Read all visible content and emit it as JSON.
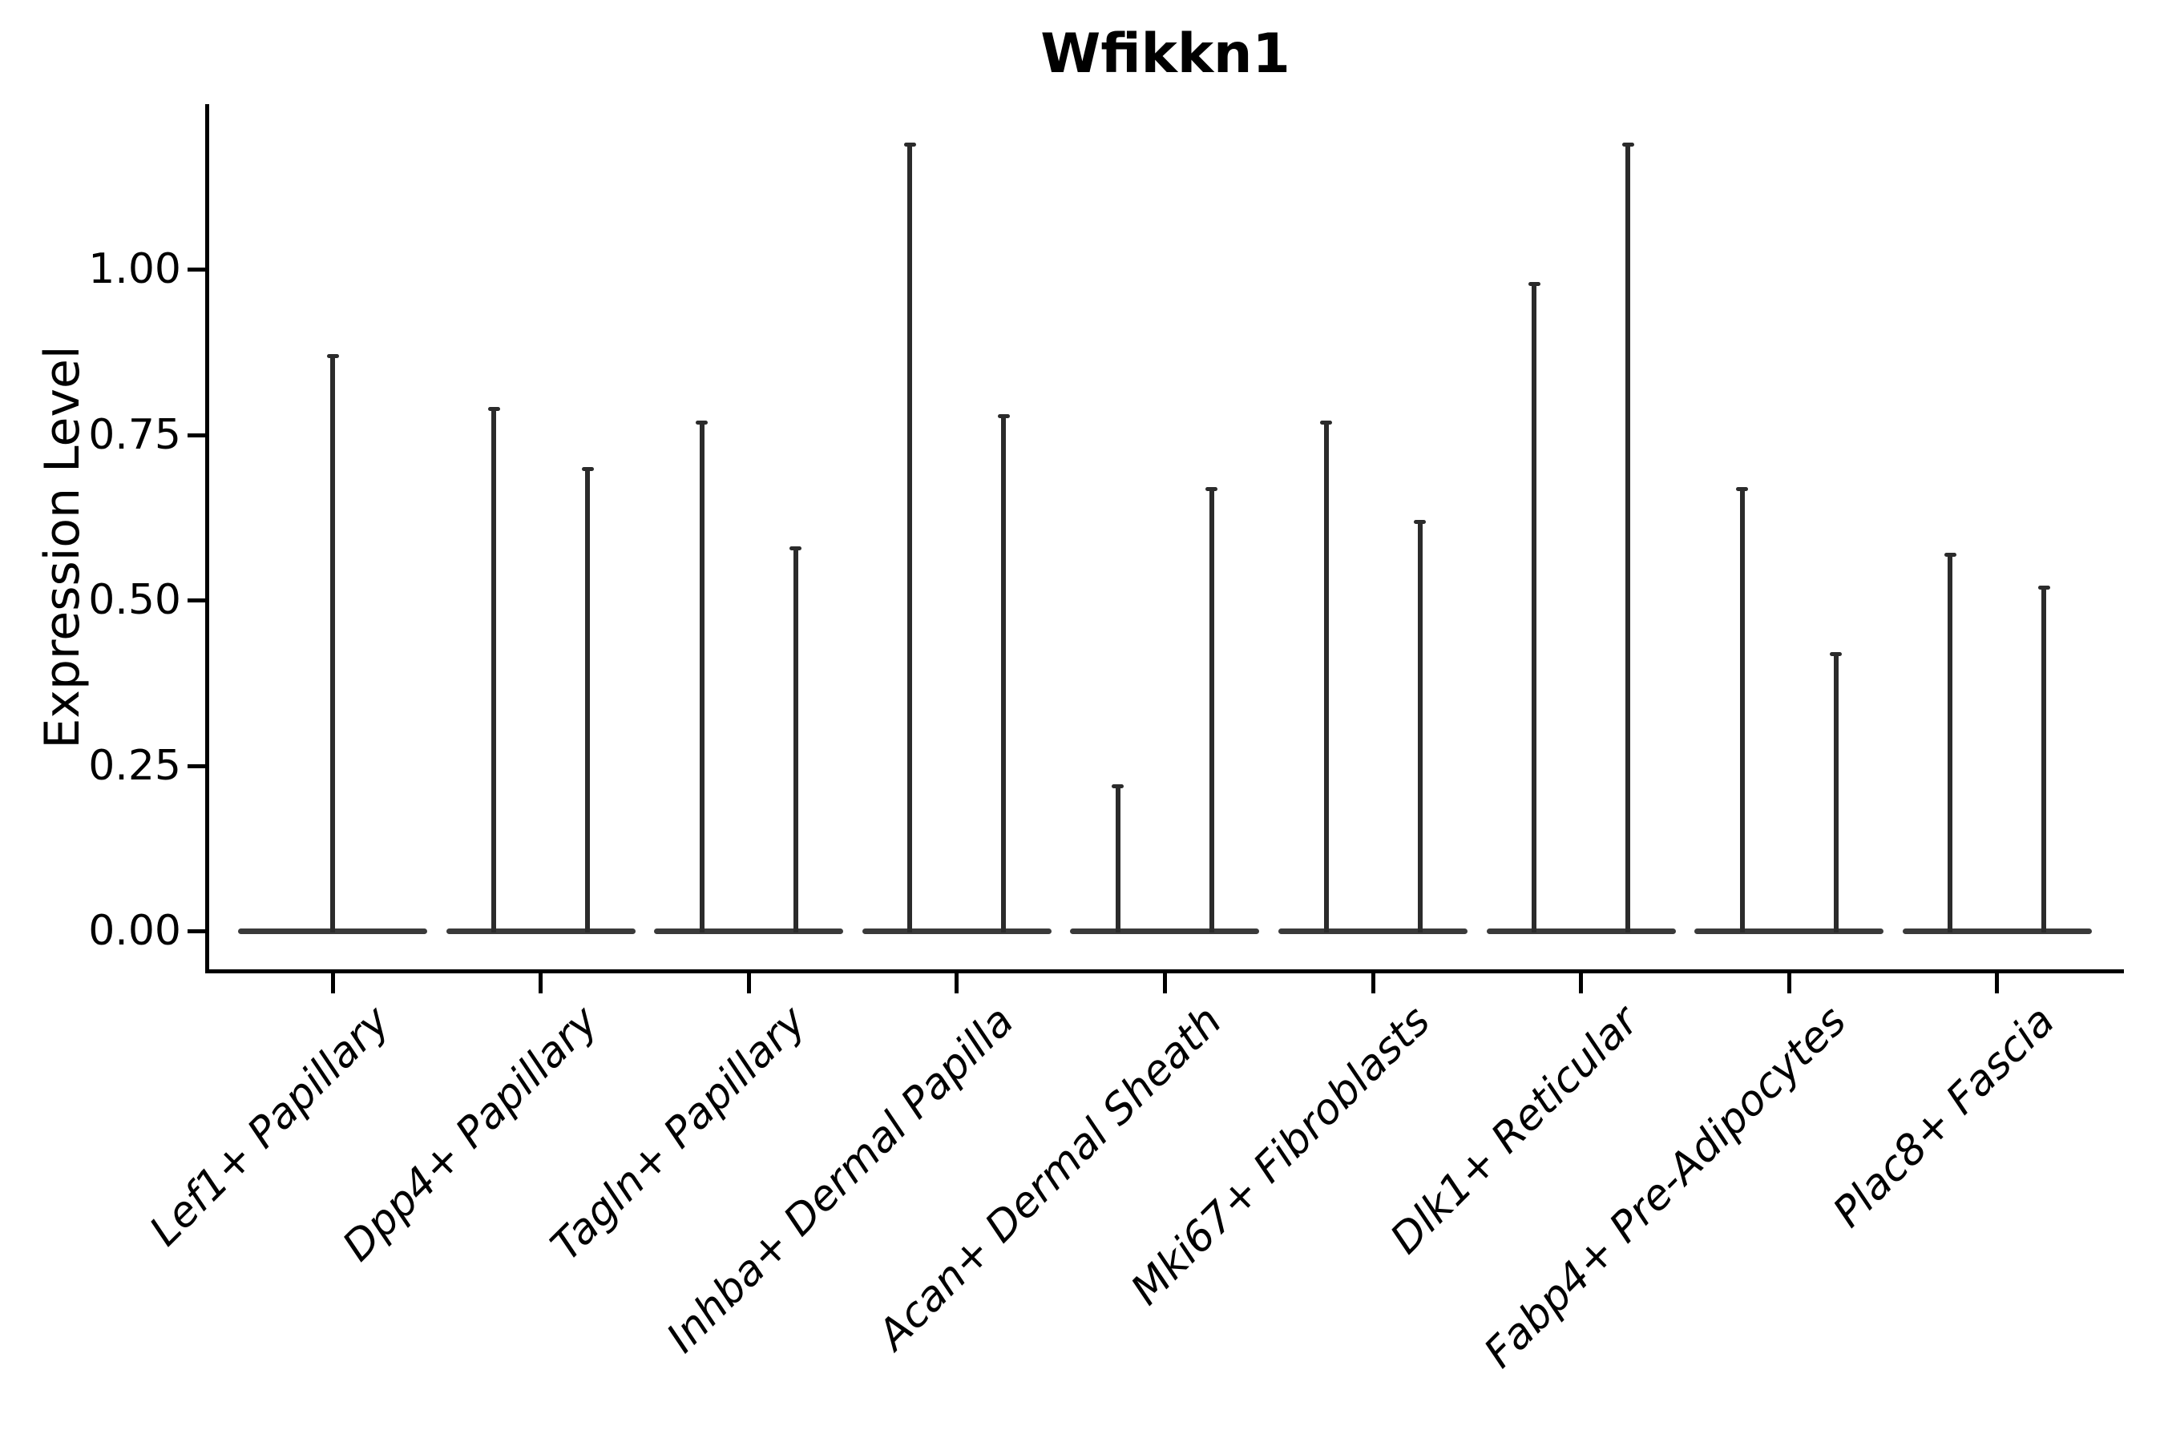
{
  "chart_data": {
    "type": "violin",
    "title": "Wfikkn1",
    "ylabel": "Expression Level",
    "xlabel": "",
    "ytick_labels": [
      "0.00",
      "0.25",
      "0.50",
      "0.75",
      "1.00"
    ],
    "ytick_values": [
      0,
      0.25,
      0.5,
      0.75,
      1.0
    ],
    "ylim": [
      -0.06,
      1.25
    ],
    "grid": false,
    "legend_position": "none",
    "x_label_rotation_deg": 45,
    "categories": [
      "Lef1+ Papillary",
      "Dpp4+ Papillary",
      "Tagln+ Papillary",
      "Inhba+ Dermal Papilla",
      "Acan+ Dermal Sheath",
      "Mki67+ Fibroblasts",
      "Dlk1+ Reticular",
      "Fabp4+ Pre-Adipocytes",
      "Plac8+ Fascia"
    ],
    "violins": [
      {
        "category": "Lef1+ Papillary",
        "group_max_expression": [
          0.87
        ]
      },
      {
        "category": "Dpp4+ Papillary",
        "group_max_expression": [
          0.79,
          0.7
        ]
      },
      {
        "category": "Tagln+ Papillary",
        "group_max_expression": [
          0.77,
          0.58
        ]
      },
      {
        "category": "Inhba+ Dermal Papilla",
        "group_max_expression": [
          1.19,
          0.78
        ]
      },
      {
        "category": "Acan+ Dermal Sheath",
        "group_max_expression": [
          0.22,
          0.67
        ]
      },
      {
        "category": "Mki67+ Fibroblasts",
        "group_max_expression": [
          0.77,
          0.62
        ]
      },
      {
        "category": "Dlk1+ Reticular",
        "group_max_expression": [
          0.98,
          1.19
        ]
      },
      {
        "category": "Fabp4+ Pre-Adipocytes",
        "group_max_expression": [
          0.67,
          0.42
        ]
      },
      {
        "category": "Plac8+ Fascia",
        "group_max_expression": [
          0.57,
          0.52
        ]
      }
    ],
    "colors": {
      "violin_outline": "#2b2b2b",
      "violin_baseline": "#3a3a3a",
      "axis": "#000000",
      "text": "#000000",
      "background": "#ffffff"
    }
  }
}
